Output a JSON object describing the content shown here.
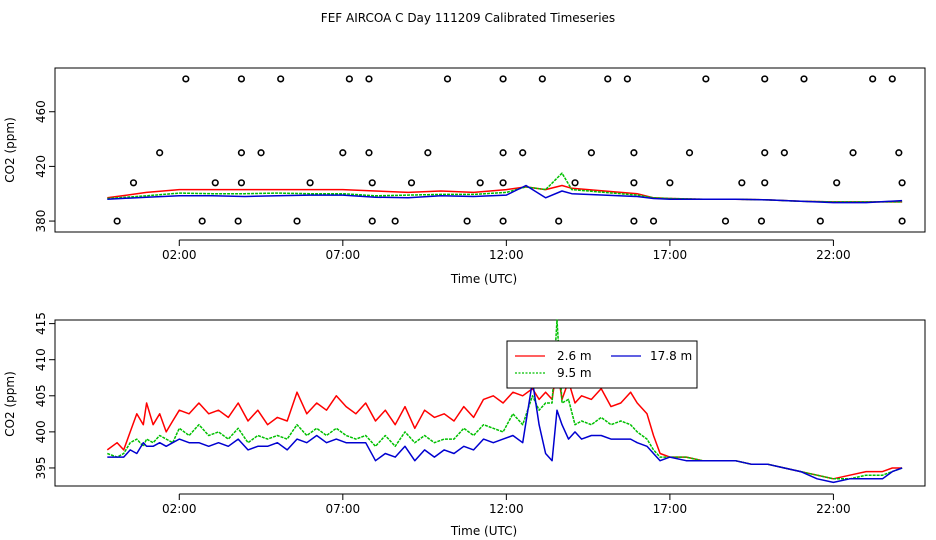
{
  "figure_title": "FEF AIRCOA C  Day 111209  Calibrated Timeseries",
  "chart_data": [
    {
      "type": "scatter+line",
      "title": "",
      "xlabel": "Time (UTC)",
      "ylabel": "CO2 (ppm)",
      "xlim_hours": [
        -1.8,
        24.8
      ],
      "ylim": [
        372,
        492
      ],
      "x_tick_hours": [
        2,
        7,
        12,
        17,
        22
      ],
      "x_tick_labels": [
        "02:00",
        "07:00",
        "12:00",
        "17:00",
        "22:00"
      ],
      "y_ticks": [
        380,
        420,
        460
      ],
      "y_tick_labels": [
        "380",
        "420",
        "460"
      ],
      "calibration_points": [
        {
          "level": 380,
          "hours": [
            0.1,
            2.7,
            3.8,
            5.6,
            7.9,
            8.6,
            10.8,
            11.9,
            13.6,
            15.9,
            16.5,
            18.7,
            19.8,
            21.6,
            24.1
          ]
        },
        {
          "level": 408,
          "hours": [
            0.6,
            3.1,
            3.9,
            6.0,
            7.9,
            9.1,
            11.2,
            11.9,
            14.1,
            15.9,
            17.0,
            19.2,
            19.9,
            22.1,
            24.1
          ]
        },
        {
          "level": 430,
          "hours": [
            1.4,
            3.9,
            4.5,
            7.0,
            7.8,
            9.6,
            11.9,
            12.5,
            14.6,
            15.9,
            17.6,
            19.9,
            20.5,
            22.6,
            24.0
          ]
        },
        {
          "level": 484,
          "hours": [
            2.2,
            3.9,
            5.1,
            7.2,
            7.8,
            10.2,
            11.9,
            13.1,
            15.1,
            15.7,
            18.1,
            19.9,
            21.1,
            23.2,
            23.8
          ]
        }
      ],
      "series": [
        {
          "name": "2.6 m",
          "color": "#ff0000",
          "x_hours": [
            -0.2,
            1,
            2,
            3,
            4,
            5,
            6,
            7,
            8,
            9,
            10,
            11,
            12,
            12.6,
            13.2,
            13.7,
            14,
            15,
            16,
            16.5,
            17,
            18,
            19,
            20,
            21,
            22,
            23,
            24.1
          ],
          "values": [
            397,
            401,
            403,
            403,
            403,
            403,
            403,
            403,
            402,
            401,
            402,
            401,
            403,
            405,
            403,
            406,
            404,
            402,
            400,
            397,
            396.5,
            396,
            396,
            395.5,
            394.5,
            394,
            394,
            394
          ]
        },
        {
          "name": "9.5 m",
          "color": "#00c000",
          "x_hours": [
            -0.2,
            1,
            2,
            3,
            4,
            5,
            6,
            7,
            8,
            9,
            10,
            11,
            12,
            12.6,
            13.2,
            13.7,
            14,
            15,
            16,
            16.5,
            17,
            18,
            19,
            20,
            21,
            22,
            23,
            24.1
          ],
          "values": [
            396.5,
            398.5,
            400.5,
            400,
            400,
            400.5,
            400,
            400,
            398.5,
            399,
            399.5,
            399.5,
            401,
            405,
            403,
            415,
            403,
            401,
            399,
            397,
            396.5,
            396,
            396,
            395.5,
            394.5,
            394,
            394,
            394
          ]
        },
        {
          "name": "17.8 m",
          "color": "#0000d0",
          "x_hours": [
            -0.2,
            1,
            2,
            3,
            4,
            5,
            6,
            7,
            8,
            9,
            10,
            11,
            12,
            12.6,
            13.2,
            13.7,
            14,
            15,
            16,
            16.5,
            17,
            18,
            19,
            20,
            21,
            22,
            23,
            24.1
          ],
          "values": [
            396,
            397.5,
            398.5,
            398.5,
            398,
            398.5,
            399,
            399,
            397.5,
            397,
            398.5,
            398,
            399,
            406,
            397,
            402,
            400,
            399,
            398,
            396.5,
            396,
            396,
            396,
            395.5,
            394.5,
            393.5,
            393.5,
            395
          ]
        }
      ]
    },
    {
      "type": "line",
      "title": "",
      "xlabel": "Time (UTC)",
      "ylabel": "CO2 (ppm)",
      "xlim_hours": [
        -1.8,
        24.8
      ],
      "ylim": [
        392.5,
        415.5
      ],
      "x_tick_hours": [
        2,
        7,
        12,
        17,
        22
      ],
      "x_tick_labels": [
        "02:00",
        "07:00",
        "12:00",
        "17:00",
        "22:00"
      ],
      "y_ticks": [
        395,
        400,
        405,
        410,
        415
      ],
      "y_tick_labels": [
        "395",
        "400",
        "405",
        "410",
        "415"
      ],
      "legend": {
        "position": "top-center",
        "entries": [
          "2.6 m",
          "9.5 m",
          "17.8 m"
        ]
      },
      "series": [
        {
          "name": "2.6 m",
          "color": "#ff0000",
          "x_hours": [
            -0.2,
            0.1,
            0.3,
            0.5,
            0.7,
            0.9,
            1.0,
            1.2,
            1.4,
            1.6,
            1.8,
            2.0,
            2.3,
            2.6,
            2.9,
            3.2,
            3.5,
            3.8,
            4.1,
            4.4,
            4.7,
            5.0,
            5.3,
            5.6,
            5.9,
            6.2,
            6.5,
            6.8,
            7.1,
            7.4,
            7.7,
            8.0,
            8.3,
            8.6,
            8.9,
            9.2,
            9.5,
            9.8,
            10.1,
            10.4,
            10.7,
            11.0,
            11.3,
            11.6,
            11.9,
            12.2,
            12.5,
            12.8,
            13.0,
            13.2,
            13.4,
            13.55,
            13.7,
            13.9,
            14.1,
            14.3,
            14.6,
            14.9,
            15.2,
            15.5,
            15.8,
            16.0,
            16.3,
            16.5,
            16.7,
            17.0,
            17.5,
            18.0,
            18.5,
            19.0,
            19.5,
            20.0,
            20.5,
            21.0,
            21.5,
            22.0,
            22.5,
            23.0,
            23.5,
            23.8,
            24.1
          ],
          "values": [
            397.5,
            398.5,
            397.5,
            400,
            402.5,
            401,
            404,
            401,
            402.5,
            400,
            401.5,
            403,
            402.5,
            404,
            402.5,
            403,
            402,
            404,
            401.5,
            403,
            401,
            402,
            401.5,
            405.5,
            402.5,
            404,
            403,
            405,
            403.5,
            402.5,
            404,
            401.5,
            403,
            401,
            403.5,
            400.5,
            403,
            402,
            402.5,
            401.5,
            403.5,
            402,
            404.5,
            405,
            404,
            405.5,
            405,
            406,
            404.5,
            405.5,
            404.5,
            409,
            404.5,
            407,
            404,
            405,
            404.5,
            406,
            403.5,
            404,
            405.5,
            404,
            402.5,
            399.5,
            397,
            396.5,
            396.5,
            396,
            396,
            396,
            395.5,
            395.5,
            395,
            394.5,
            394,
            393.5,
            394,
            394.5,
            394.5,
            395,
            395
          ]
        },
        {
          "name": "9.5 m",
          "color": "#00c000",
          "x_hours": [
            -0.2,
            0.1,
            0.3,
            0.5,
            0.7,
            0.9,
            1.0,
            1.2,
            1.4,
            1.6,
            1.8,
            2.0,
            2.3,
            2.6,
            2.9,
            3.2,
            3.5,
            3.8,
            4.1,
            4.4,
            4.7,
            5.0,
            5.3,
            5.6,
            5.9,
            6.2,
            6.5,
            6.8,
            7.1,
            7.4,
            7.7,
            8.0,
            8.3,
            8.6,
            8.9,
            9.2,
            9.5,
            9.8,
            10.1,
            10.4,
            10.7,
            11.0,
            11.3,
            11.6,
            11.9,
            12.2,
            12.5,
            12.8,
            13.0,
            13.2,
            13.4,
            13.55,
            13.7,
            13.9,
            14.1,
            14.3,
            14.6,
            14.9,
            15.2,
            15.5,
            15.8,
            16.0,
            16.3,
            16.5,
            16.7,
            17.0,
            17.5,
            18.0,
            18.5,
            19.0,
            19.5,
            20.0,
            20.5,
            21.0,
            21.5,
            22.0,
            22.5,
            23.0,
            23.5,
            23.8,
            24.1
          ],
          "values": [
            397,
            396.5,
            397,
            398.5,
            399,
            398,
            399,
            398.5,
            399.5,
            399,
            398.5,
            400.5,
            399.5,
            401,
            399.5,
            400,
            399,
            400.5,
            398.5,
            399.5,
            399,
            399.5,
            399,
            401,
            399.5,
            400.5,
            399.5,
            400.5,
            399.5,
            399,
            399.5,
            398,
            399.5,
            398,
            400,
            398.5,
            399.5,
            398.5,
            399,
            399,
            400.5,
            399.5,
            401,
            400.5,
            400,
            402.5,
            401,
            405,
            403,
            404,
            404,
            415.5,
            404,
            404.5,
            401,
            401.5,
            401,
            402,
            401,
            401.5,
            401,
            400,
            399,
            397.5,
            396.5,
            396.5,
            396.5,
            396,
            396,
            396,
            395.5,
            395.5,
            395,
            394.5,
            394,
            393.5,
            393.5,
            394,
            394,
            394.5,
            395
          ]
        },
        {
          "name": "17.8 m",
          "color": "#0000d0",
          "x_hours": [
            -0.2,
            0.1,
            0.3,
            0.5,
            0.7,
            0.9,
            1.0,
            1.2,
            1.4,
            1.6,
            1.8,
            2.0,
            2.3,
            2.6,
            2.9,
            3.2,
            3.5,
            3.8,
            4.1,
            4.4,
            4.7,
            5.0,
            5.3,
            5.6,
            5.9,
            6.2,
            6.5,
            6.8,
            7.1,
            7.4,
            7.7,
            8.0,
            8.3,
            8.6,
            8.9,
            9.2,
            9.5,
            9.8,
            10.1,
            10.4,
            10.7,
            11.0,
            11.3,
            11.6,
            11.9,
            12.2,
            12.5,
            12.8,
            13.0,
            13.2,
            13.4,
            13.55,
            13.7,
            13.9,
            14.1,
            14.3,
            14.6,
            14.9,
            15.2,
            15.5,
            15.8,
            16.0,
            16.3,
            16.5,
            16.7,
            17.0,
            17.5,
            18.0,
            18.5,
            19.0,
            19.5,
            20.0,
            20.5,
            21.0,
            21.5,
            22.0,
            22.5,
            23.0,
            23.5,
            23.8,
            24.1
          ],
          "values": [
            396.5,
            396.5,
            396.5,
            397.5,
            397,
            398.5,
            398,
            398,
            398.5,
            398,
            398.5,
            399,
            398.5,
            398.5,
            398,
            398.5,
            398,
            399,
            397.5,
            398,
            398,
            398.5,
            397.5,
            399,
            398.5,
            399.5,
            398.5,
            399,
            398.5,
            398.5,
            398.5,
            396,
            397,
            396.5,
            398,
            396,
            397.5,
            396.5,
            397.5,
            397,
            398,
            397.5,
            399,
            398.5,
            399,
            399.5,
            398.5,
            407,
            401,
            397,
            396,
            403,
            401,
            399,
            400,
            399,
            399.5,
            399.5,
            399,
            399,
            399,
            398.5,
            398,
            397,
            396,
            396.5,
            396,
            396,
            396,
            396,
            395.5,
            395.5,
            395,
            394.5,
            393.5,
            393,
            393.5,
            393.5,
            393.5,
            394.5,
            395
          ]
        }
      ]
    }
  ]
}
